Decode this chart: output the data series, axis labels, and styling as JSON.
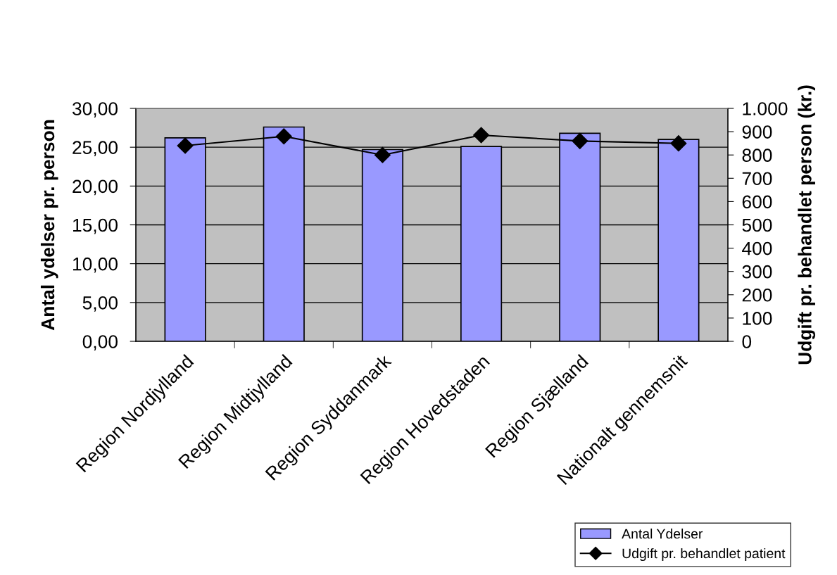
{
  "chart_data": {
    "type": "bar",
    "categories": [
      "Region Nordjylland",
      "Region Midtjylland",
      "Region Syddanmark",
      "Region Hovedstaden",
      "Region Sjælland",
      "Nationalt gennemsnit"
    ],
    "series": [
      {
        "name": "Antal Ydelser",
        "color": "#9999ff",
        "values": [
          26.2,
          27.6,
          24.7,
          25.1,
          26.8,
          26.0
        ]
      },
      {
        "name": "Udgift pr. behandlet patient",
        "type": "line",
        "axis": "y2",
        "color": "#000000",
        "values": [
          840,
          880,
          800,
          885,
          860,
          850
        ]
      }
    ],
    "ylabel": "Antal ydelser pr. person",
    "y2label": "Udgift pr. behandlet person (kr.)",
    "ylim": [
      0,
      30
    ],
    "yticks": [
      {
        "value": 0,
        "label": "0,00"
      },
      {
        "value": 5,
        "label": "5,00"
      },
      {
        "value": 10,
        "label": "10,00"
      },
      {
        "value": 15,
        "label": "15,00"
      },
      {
        "value": 20,
        "label": "20,00"
      },
      {
        "value": 25,
        "label": "25,00"
      },
      {
        "value": 30,
        "label": "30,00"
      }
    ],
    "y2lim": [
      0,
      1000
    ],
    "y2ticks": [
      0,
      100,
      200,
      300,
      400,
      500,
      600,
      700,
      800,
      900,
      {
        "value": 1000,
        "label": "1.000"
      }
    ],
    "grid": "y",
    "legend": "bottom right",
    "marker": "diamond",
    "line_style": "solid"
  }
}
